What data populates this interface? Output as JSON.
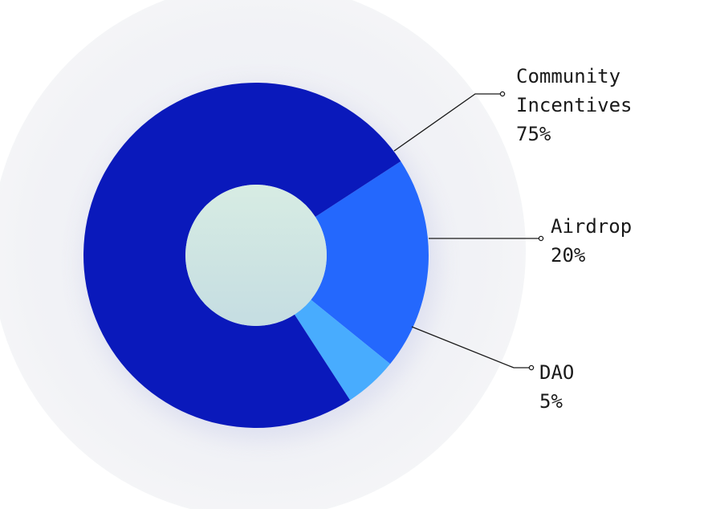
{
  "chart_data": {
    "type": "pie",
    "donut": true,
    "title": "",
    "slices": [
      {
        "label_lines": [
          "Community",
          "Incentives"
        ],
        "percent_label": "75%",
        "value": 75,
        "color": "#0A19BB"
      },
      {
        "label_lines": [
          "Airdrop"
        ],
        "percent_label": "20%",
        "value": 20,
        "color": "#2468FD"
      },
      {
        "label_lines": [
          "DAO"
        ],
        "percent_label": "5%",
        "value": 5,
        "color": "#48ACFE"
      }
    ],
    "center_color": "#D4EAE6",
    "backdrop_color": "#F2F3F6",
    "leader_color": "#1a1a1a",
    "legend_position": "right"
  }
}
